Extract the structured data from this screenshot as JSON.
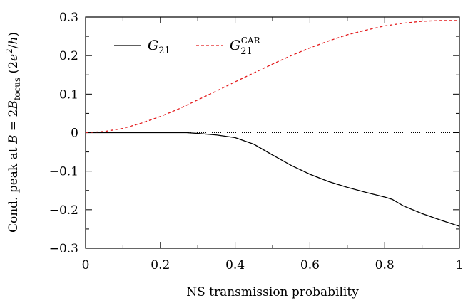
{
  "chart_data": {
    "type": "line",
    "xlabel": "NS transmission probability",
    "ylabel": "Cond. peak at B = 2B_focus (2e²/h)",
    "xlim": [
      0,
      1
    ],
    "ylim": [
      -0.3,
      0.3
    ],
    "x_ticks": [
      0,
      0.2,
      0.4,
      0.6,
      0.8,
      1
    ],
    "x_tick_labels": [
      "0",
      "0.2",
      "0.4",
      "0.6",
      "0.8",
      "1"
    ],
    "y_ticks": [
      0.3,
      0.2,
      0.1,
      0,
      -0.1,
      -0.2,
      -0.3
    ],
    "y_tick_labels": [
      "0.3",
      "0.2",
      "0.1",
      "0",
      "−0.1",
      "−0.2",
      "−0.3"
    ],
    "legend_position": "top-left",
    "series": [
      {
        "name": "G21",
        "color": "#000000",
        "style": "solid",
        "x": [
          0,
          0.05,
          0.1,
          0.15,
          0.2,
          0.25,
          0.27,
          0.3,
          0.35,
          0.4,
          0.45,
          0.5,
          0.55,
          0.6,
          0.65,
          0.7,
          0.75,
          0.8,
          0.82,
          0.85,
          0.9,
          0.95,
          1
        ],
        "y": [
          0,
          0,
          0,
          0,
          0,
          0,
          0,
          -0.002,
          -0.006,
          -0.013,
          -0.03,
          -0.058,
          -0.085,
          -0.108,
          -0.127,
          -0.142,
          -0.155,
          -0.167,
          -0.173,
          -0.19,
          -0.21,
          -0.227,
          -0.243
        ]
      },
      {
        "name": "G21 CAR",
        "color": "#e41a1c",
        "style": "dashed",
        "x": [
          0,
          0.05,
          0.1,
          0.15,
          0.2,
          0.25,
          0.3,
          0.35,
          0.4,
          0.45,
          0.5,
          0.55,
          0.6,
          0.65,
          0.7,
          0.75,
          0.8,
          0.85,
          0.9,
          0.95,
          1
        ],
        "y": [
          0,
          0.003,
          0.011,
          0.025,
          0.042,
          0.062,
          0.085,
          0.108,
          0.132,
          0.155,
          0.178,
          0.2,
          0.22,
          0.238,
          0.254,
          0.266,
          0.277,
          0.284,
          0.289,
          0.291,
          0.291
        ]
      }
    ],
    "zero_line": true
  }
}
